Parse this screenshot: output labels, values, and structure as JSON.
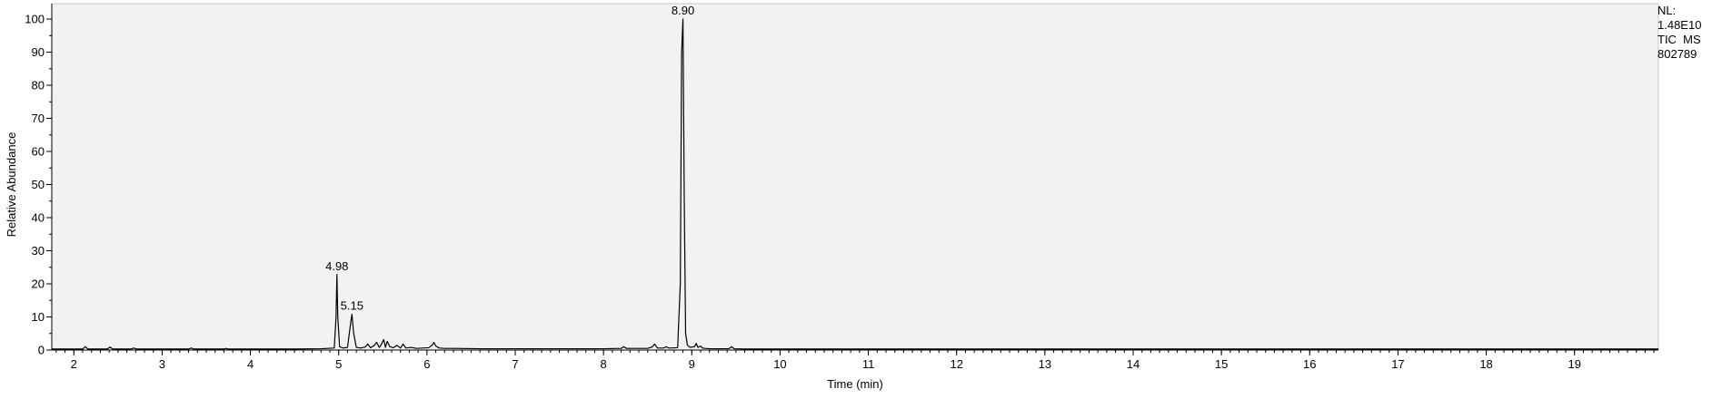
{
  "chart_data": {
    "type": "line",
    "title": "",
    "xlabel": "Time (min)",
    "ylabel": "Relative Abundance",
    "xlim": [
      1.75,
      19.95
    ],
    "ylim": [
      0,
      100
    ],
    "x_ticks": [
      2,
      3,
      4,
      5,
      6,
      7,
      8,
      9,
      10,
      11,
      12,
      13,
      14,
      15,
      16,
      17,
      18,
      19
    ],
    "y_ticks": [
      0,
      10,
      20,
      30,
      40,
      50,
      60,
      70,
      80,
      90,
      100
    ],
    "grid": false,
    "background": "#f2f2f2",
    "line_color": "#000000",
    "peak_labels": [
      {
        "text": "8.90",
        "x": 8.9,
        "y": 100
      },
      {
        "text": "4.98",
        "x": 4.98,
        "y": 22.8
      },
      {
        "text": "5.15",
        "x": 5.15,
        "y": 10.8
      }
    ],
    "series": [
      {
        "x": [
          1.75,
          2.1,
          2.13,
          2.16,
          2.38,
          2.41,
          2.44,
          2.65,
          2.68,
          2.71,
          3.3,
          3.33,
          3.36,
          3.7,
          3.72,
          3.74,
          4.2,
          4.5,
          4.8,
          4.95,
          4.97,
          4.98,
          4.99,
          5.01,
          5.05,
          5.1,
          5.13,
          5.15,
          5.17,
          5.2,
          5.25,
          5.3,
          5.33,
          5.36,
          5.4,
          5.43,
          5.46,
          5.48,
          5.51,
          5.53,
          5.55,
          5.58,
          5.62,
          5.66,
          5.7,
          5.73,
          5.76,
          5.82,
          5.88,
          5.95,
          6.02,
          6.06,
          6.08,
          6.1,
          6.14,
          6.2,
          6.3,
          6.6,
          7.0,
          7.5,
          8.0,
          8.2,
          8.23,
          8.26,
          8.5,
          8.55,
          8.58,
          8.61,
          8.68,
          8.71,
          8.74,
          8.84,
          8.87,
          8.885,
          8.9,
          8.915,
          8.93,
          8.95,
          8.98,
          9.03,
          9.05,
          9.07,
          9.1,
          9.12,
          9.15,
          9.2,
          9.3,
          9.42,
          9.45,
          9.48,
          9.6,
          10.0,
          11.0,
          12.0,
          13.0,
          14.0,
          15.0,
          16.0,
          17.0,
          18.0,
          19.0,
          19.95
        ],
        "y": [
          0.3,
          0.3,
          1.0,
          0.3,
          0.3,
          0.9,
          0.3,
          0.3,
          0.6,
          0.3,
          0.3,
          0.6,
          0.3,
          0.3,
          0.5,
          0.3,
          0.3,
          0.3,
          0.4,
          0.6,
          10.0,
          22.8,
          10.0,
          1.0,
          0.6,
          0.8,
          7.0,
          10.8,
          5.0,
          0.8,
          0.6,
          0.9,
          1.8,
          0.7,
          1.3,
          2.3,
          0.8,
          1.5,
          3.2,
          0.8,
          2.6,
          1.0,
          0.7,
          1.4,
          0.6,
          1.8,
          0.6,
          0.8,
          0.5,
          0.6,
          0.7,
          1.5,
          2.3,
          1.2,
          0.6,
          0.5,
          0.5,
          0.4,
          0.4,
          0.4,
          0.4,
          0.5,
          1.0,
          0.5,
          0.5,
          0.9,
          1.8,
          0.6,
          0.6,
          1.0,
          0.6,
          0.7,
          20.0,
          90.0,
          100.0,
          45.0,
          5.0,
          1.5,
          0.8,
          1.0,
          2.0,
          0.8,
          1.2,
          0.6,
          0.5,
          0.4,
          0.4,
          0.4,
          1.0,
          0.4,
          0.3,
          0.3,
          0.3,
          0.3,
          0.3,
          0.3,
          0.3,
          0.3,
          0.3,
          0.3,
          0.3,
          0.3
        ]
      }
    ]
  },
  "info": {
    "nl_label": "NL:",
    "nl_value": "1.48E10",
    "trace": "TIC  MS",
    "file": "802789"
  }
}
